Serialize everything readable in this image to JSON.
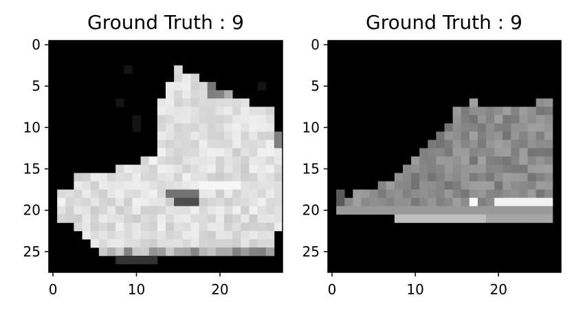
{
  "chart_data": [
    {
      "type": "heatmap",
      "title": "Ground Truth : 9",
      "colormap": "gray",
      "grid": false,
      "x_ticks": [
        "0",
        "10",
        "20"
      ],
      "y_ticks": [
        "0",
        "5",
        "10",
        "15",
        "20",
        "25"
      ],
      "xlim": [
        -0.5,
        27.5
      ],
      "ylim": [
        27.5,
        -0.5
      ],
      "image_size": [
        28,
        28
      ],
      "content": "ankle boot"
    },
    {
      "type": "heatmap",
      "title": "Ground Truth : 9",
      "colormap": "gray",
      "grid": false,
      "x_ticks": [
        "0",
        "10",
        "20"
      ],
      "y_ticks": [
        "0",
        "5",
        "10",
        "15",
        "20",
        "25"
      ],
      "xlim": [
        -0.5,
        27.5
      ],
      "ylim": [
        27.5,
        -0.5
      ],
      "image_size": [
        28,
        28
      ],
      "content": "sneaker"
    }
  ]
}
